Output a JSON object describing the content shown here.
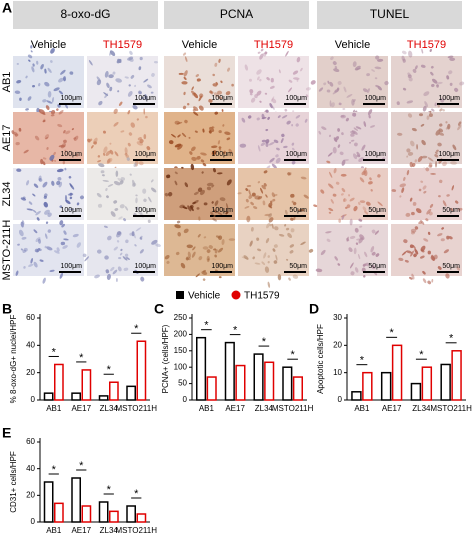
{
  "panel_a": {
    "label": "A",
    "stains": [
      "8-oxo-dG",
      "PCNA",
      "TUNEL"
    ],
    "treatments": [
      "Vehicle",
      "TH1579"
    ],
    "rows": [
      "AB1",
      "AE17",
      "ZL34",
      "MSTO-211H"
    ],
    "scale_bars": [
      [
        "100μm",
        "100μm",
        "100μm",
        "100μm",
        "100μm",
        "100μm"
      ],
      [
        "100μm",
        "100μm",
        "100μm",
        "100μm",
        "100μm",
        "100μm"
      ],
      [
        "100μm",
        "100μm",
        "100μm",
        "50μm",
        "50μm",
        "50μm"
      ],
      [
        "100μm",
        "100μm",
        "100μm",
        "50μm",
        "50μm",
        "50μm"
      ]
    ]
  },
  "chart_data": [
    {
      "type": "bar",
      "panel": "B",
      "ylabel": "% 8-oxo-dG+ nuclei/HPF",
      "categories": [
        "AB1",
        "AE17",
        "ZL34",
        "MSTO211H"
      ],
      "series": [
        {
          "name": "Vehicle",
          "color": "#000000",
          "values": [
            5,
            5,
            3,
            10
          ]
        },
        {
          "name": "TH1579",
          "color": "#e00000",
          "values": [
            26,
            22,
            13,
            43
          ]
        }
      ],
      "ylim": [
        0,
        60
      ],
      "yticks": [
        0,
        20,
        40,
        60
      ],
      "annotations": [
        "*",
        "*",
        "*",
        "*"
      ]
    },
    {
      "type": "bar",
      "panel": "C",
      "ylabel": "PCNA+ (cells/HPF)",
      "categories": [
        "AB1",
        "AE17",
        "ZL34",
        "MSTO211H"
      ],
      "series": [
        {
          "color": "#000000",
          "values": [
            190,
            175,
            140,
            100
          ]
        },
        {
          "color": "#e00000",
          "values": [
            70,
            105,
            115,
            70
          ]
        }
      ],
      "ylim": [
        0,
        250
      ],
      "yticks": [
        0,
        50,
        100,
        150,
        200,
        250
      ],
      "annotations": [
        "*",
        "*",
        "*",
        "*"
      ]
    },
    {
      "type": "bar",
      "panel": "D",
      "ylabel": "Apoptotic cells/HPF",
      "categories": [
        "AB1",
        "AE17",
        "ZL34",
        "MSTO211H"
      ],
      "series": [
        {
          "color": "#000000",
          "values": [
            3,
            10,
            6,
            13
          ]
        },
        {
          "color": "#e00000",
          "values": [
            10,
            20,
            12,
            18
          ]
        }
      ],
      "ylim": [
        0,
        30
      ],
      "yticks": [
        0,
        10,
        20,
        30
      ],
      "annotations": [
        "*",
        "*",
        "*",
        "*"
      ]
    },
    {
      "type": "bar",
      "panel": "E",
      "ylabel": "CD31+ cells/HPF",
      "categories": [
        "AB1",
        "AE17",
        "ZL34",
        "MSTO211H"
      ],
      "series": [
        {
          "color": "#000000",
          "values": [
            30,
            33,
            15,
            12
          ]
        },
        {
          "color": "#e00000",
          "values": [
            14,
            12,
            8,
            6
          ]
        }
      ],
      "ylim": [
        0,
        60
      ],
      "yticks": [
        0,
        20,
        40,
        60
      ],
      "annotations": [
        "*",
        "*",
        "*",
        "*"
      ]
    }
  ]
}
